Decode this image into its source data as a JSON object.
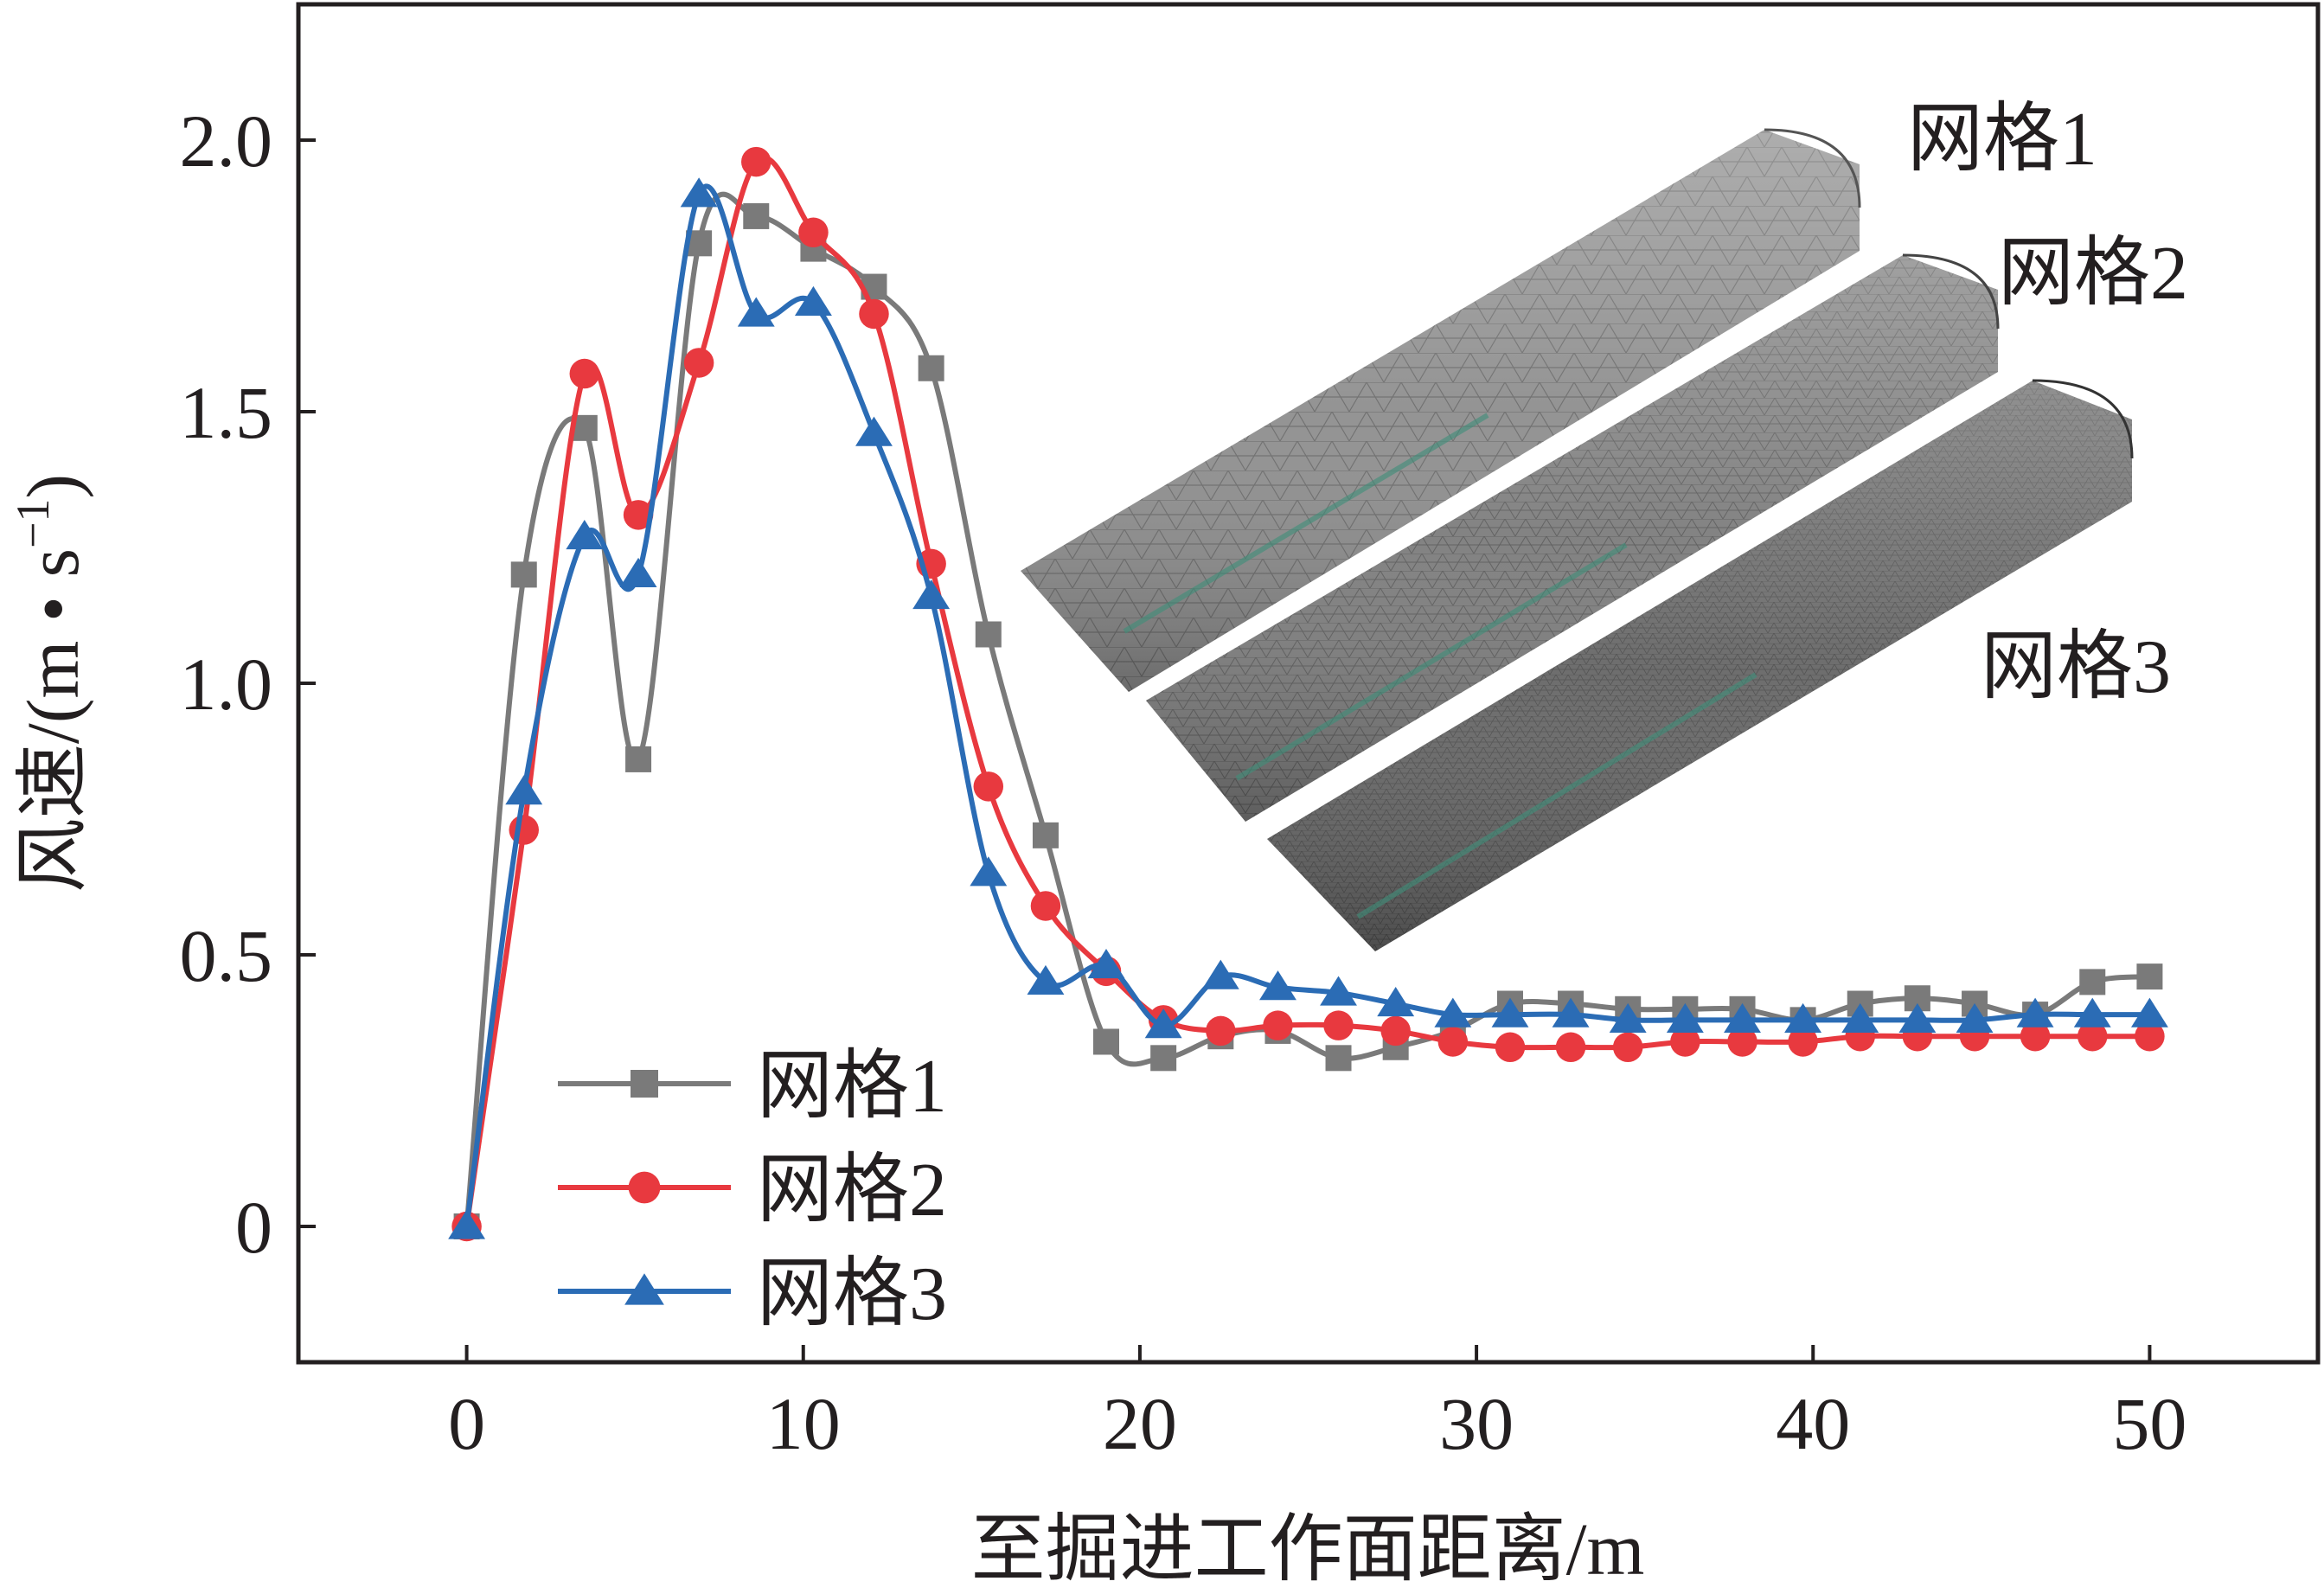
{
  "chart_data": {
    "type": "line",
    "xlabel": "至掘进工作面距离/m",
    "ylabel": {
      "prefix": "风速/(m • s",
      "sup": "−1",
      "suffix": ")"
    },
    "xlim": [
      -5,
      55
    ],
    "ylim": [
      -0.25,
      2.25
    ],
    "xticks": [
      0,
      10,
      20,
      30,
      40,
      50
    ],
    "yticks": [
      0,
      0.5,
      1.0,
      1.5,
      2.0
    ],
    "xtick_labels": [
      "0",
      "10",
      "20",
      "30",
      "40",
      "50"
    ],
    "ytick_labels": [
      "0",
      "0.5",
      "1.0",
      "1.5",
      "2.0"
    ],
    "grid": false,
    "legend_position": "bottom-left",
    "series": [
      {
        "name": "网格1",
        "color": "#7a7a7a",
        "marker": "square",
        "points": [
          [
            0,
            0
          ],
          [
            1.7,
            1.2
          ],
          [
            3.5,
            1.47
          ],
          [
            5.1,
            0.86
          ],
          [
            6.9,
            1.81
          ],
          [
            8.6,
            1.86
          ],
          [
            10.3,
            1.8
          ],
          [
            12.1,
            1.73
          ],
          [
            13.8,
            1.58
          ],
          [
            15.5,
            1.09
          ],
          [
            17.2,
            0.72
          ],
          [
            19.0,
            0.34
          ],
          [
            20.7,
            0.31
          ],
          [
            22.4,
            0.35
          ],
          [
            24.1,
            0.36
          ],
          [
            25.9,
            0.31
          ],
          [
            27.6,
            0.33
          ],
          [
            29.3,
            0.36
          ],
          [
            31.0,
            0.41
          ],
          [
            32.8,
            0.41
          ],
          [
            34.5,
            0.4
          ],
          [
            36.2,
            0.4
          ],
          [
            37.9,
            0.4
          ],
          [
            39.7,
            0.38
          ],
          [
            41.4,
            0.41
          ],
          [
            43.1,
            0.42
          ],
          [
            44.8,
            0.41
          ],
          [
            46.6,
            0.39
          ],
          [
            48.3,
            0.45
          ],
          [
            50.0,
            0.46
          ]
        ]
      },
      {
        "name": "网格2",
        "color": "#e8393f",
        "marker": "circle",
        "points": [
          [
            0,
            0
          ],
          [
            1.7,
            0.73
          ],
          [
            3.5,
            1.57
          ],
          [
            5.1,
            1.31
          ],
          [
            6.9,
            1.59
          ],
          [
            8.6,
            1.96
          ],
          [
            10.3,
            1.83
          ],
          [
            12.1,
            1.68
          ],
          [
            13.8,
            1.22
          ],
          [
            15.5,
            0.81
          ],
          [
            17.2,
            0.59
          ],
          [
            19.0,
            0.47
          ],
          [
            20.7,
            0.38
          ],
          [
            22.4,
            0.36
          ],
          [
            24.1,
            0.37
          ],
          [
            25.9,
            0.37
          ],
          [
            27.6,
            0.36
          ],
          [
            29.3,
            0.34
          ],
          [
            31.0,
            0.33
          ],
          [
            32.8,
            0.33
          ],
          [
            34.5,
            0.33
          ],
          [
            36.2,
            0.34
          ],
          [
            37.9,
            0.34
          ],
          [
            39.7,
            0.34
          ],
          [
            41.4,
            0.35
          ],
          [
            43.1,
            0.35
          ],
          [
            44.8,
            0.35
          ],
          [
            46.6,
            0.35
          ],
          [
            48.3,
            0.35
          ],
          [
            50.0,
            0.35
          ]
        ]
      },
      {
        "name": "网格3",
        "color": "#2b6cb5",
        "marker": "triangle",
        "points": [
          [
            0,
            0
          ],
          [
            1.7,
            0.8
          ],
          [
            3.5,
            1.27
          ],
          [
            5.1,
            1.2
          ],
          [
            6.9,
            1.9
          ],
          [
            8.6,
            1.68
          ],
          [
            10.3,
            1.7
          ],
          [
            12.1,
            1.46
          ],
          [
            13.8,
            1.16
          ],
          [
            15.5,
            0.65
          ],
          [
            17.2,
            0.45
          ],
          [
            19.0,
            0.48
          ],
          [
            20.7,
            0.37
          ],
          [
            22.4,
            0.46
          ],
          [
            24.1,
            0.44
          ],
          [
            25.9,
            0.43
          ],
          [
            27.6,
            0.41
          ],
          [
            29.3,
            0.39
          ],
          [
            31.0,
            0.39
          ],
          [
            32.8,
            0.39
          ],
          [
            34.5,
            0.38
          ],
          [
            36.2,
            0.38
          ],
          [
            37.9,
            0.38
          ],
          [
            39.7,
            0.38
          ],
          [
            41.4,
            0.38
          ],
          [
            43.1,
            0.38
          ],
          [
            44.8,
            0.38
          ],
          [
            46.6,
            0.39
          ],
          [
            48.3,
            0.39
          ],
          [
            50.0,
            0.39
          ]
        ]
      }
    ],
    "inset": {
      "description_labels": [
        "网格1",
        "网格2",
        "网格3"
      ]
    }
  }
}
